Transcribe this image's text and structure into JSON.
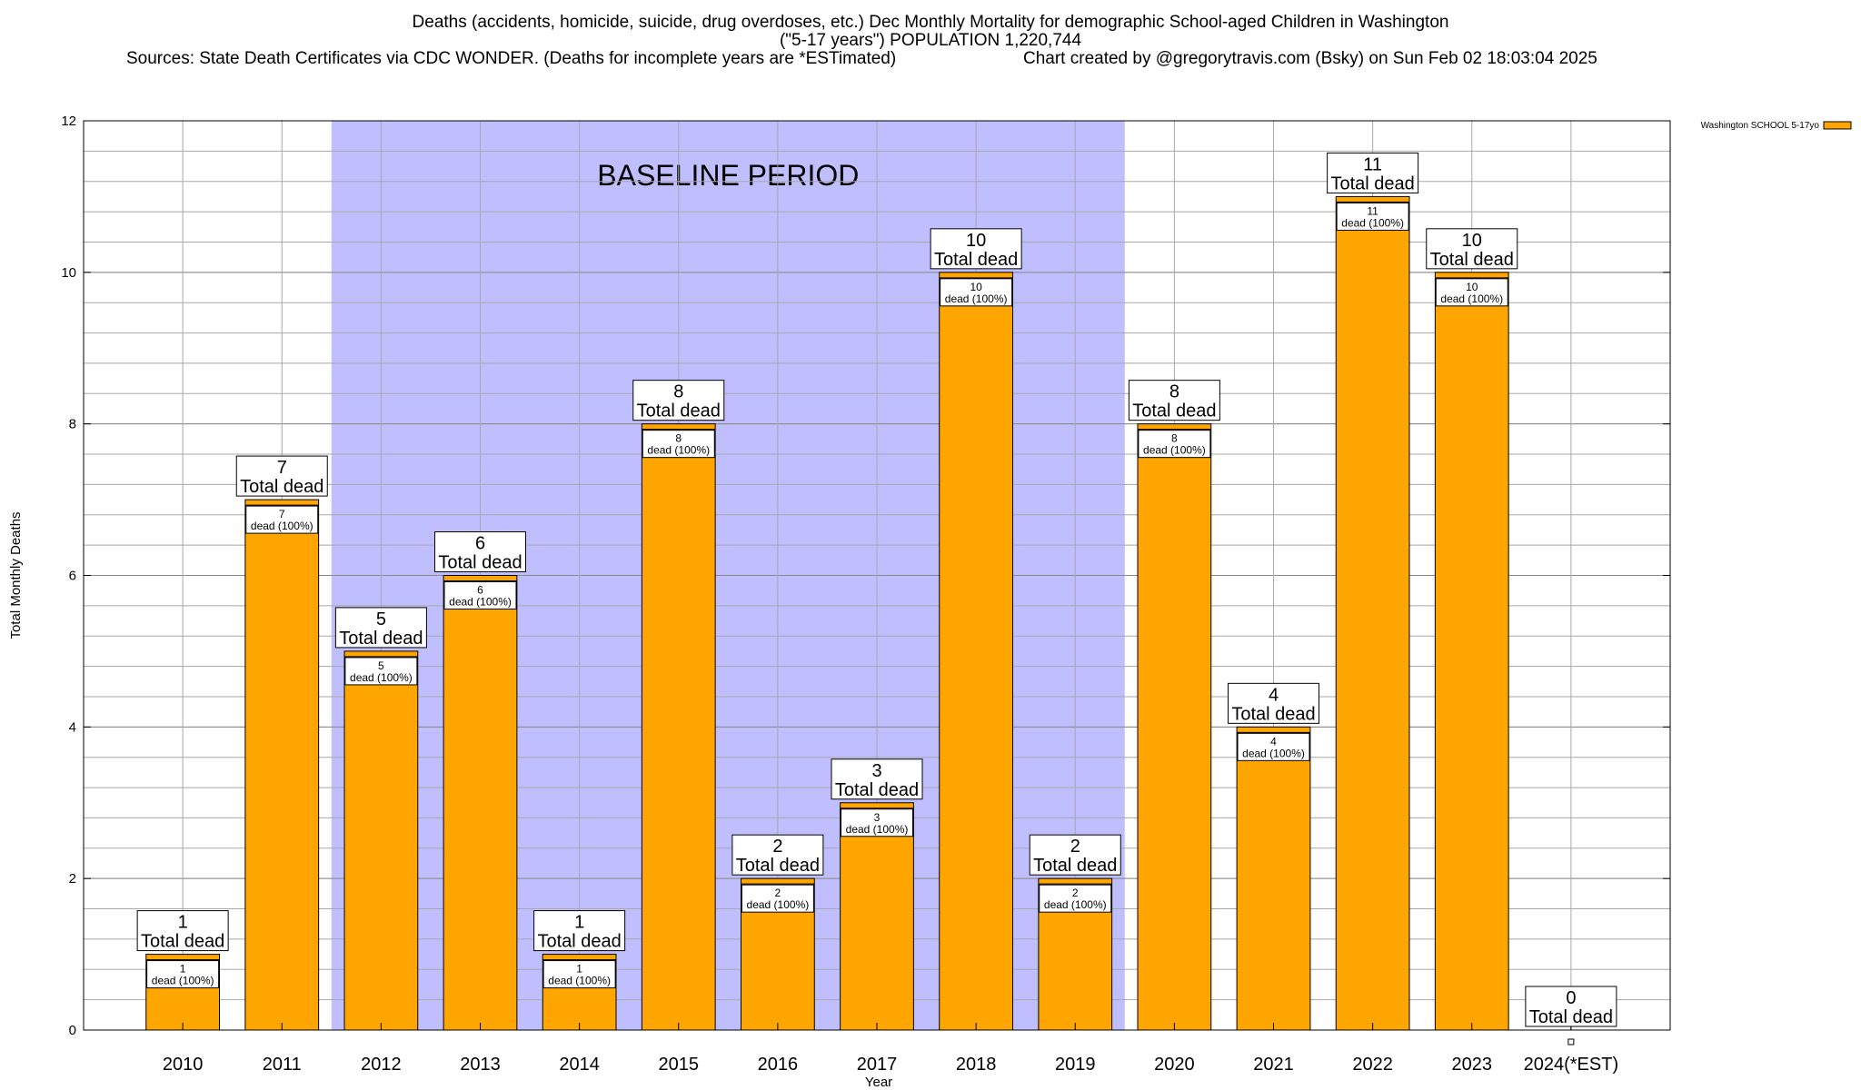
{
  "chart_data": {
    "type": "bar",
    "title_line1": "Deaths (accidents, homicide, suicide, drug overdoses, etc.) Dec Monthly Mortality for demographic School-aged Children in Washington",
    "title_line2": "(\"5-17 years\") POPULATION 1,220,744",
    "sources": "Sources: State Death Certificates via CDC WONDER. (Deaths for incomplete years are *ESTimated)",
    "credit": "Chart created by @gregorytravis.com (Bsky) on Sun Feb 02 18:03:04 2025",
    "xlabel": "Year",
    "ylabel": "Total Monthly Deaths",
    "ylim": [
      0,
      12
    ],
    "y_ticks": [
      0,
      2,
      4,
      6,
      8,
      10,
      12
    ],
    "y_minor_step": 0.4,
    "categories": [
      "2010",
      "2011",
      "2012",
      "2013",
      "2014",
      "2015",
      "2016",
      "2017",
      "2018",
      "2019",
      "2020",
      "2021",
      "2022",
      "2023",
      "2024(*EST)"
    ],
    "series": [
      {
        "name": "Washington SCHOOL 5-17yo",
        "color": "#FFA500",
        "values": [
          1,
          7,
          5,
          6,
          1,
          8,
          2,
          3,
          10,
          2,
          8,
          4,
          11,
          10,
          0
        ]
      }
    ],
    "total_label_suffix": "Total dead",
    "inner_label_suffix": "dead (100%)",
    "baseline": {
      "label": "BASELINE PERIOD",
      "start": "2012",
      "end": "2019",
      "color": "#BFBFFF"
    },
    "legend": {
      "label": "Washington SCHOOL 5-17yo",
      "position": "top-right"
    },
    "grid": true
  }
}
